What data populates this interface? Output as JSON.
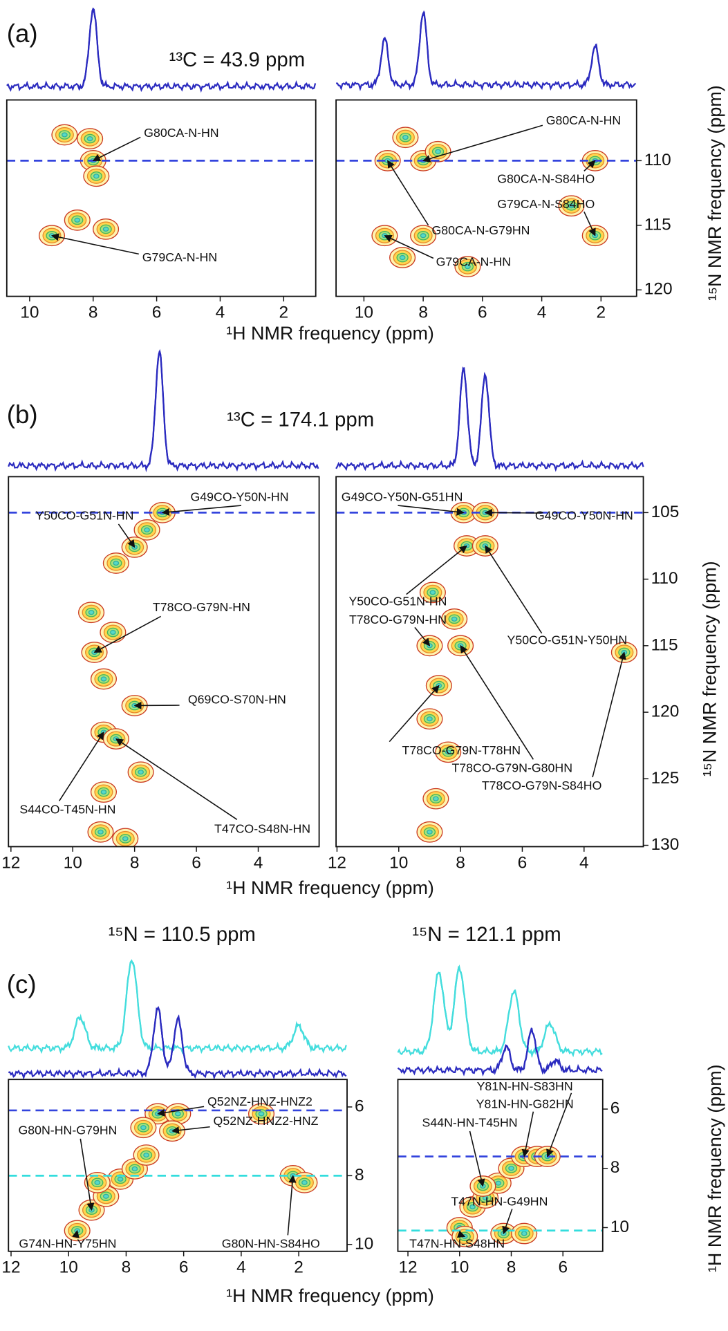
{
  "panels": [
    {
      "label": "(a)",
      "title": "¹³C = 43.9 ppm",
      "xlabel": "¹H NMR frequency (ppm)",
      "ylabel": "¹⁵N NMR frequency (ppm)",
      "plots": [
        {
          "xlim": [
            10.72,
            0.99
          ],
          "xticks": [
            10,
            8,
            6,
            4,
            2
          ],
          "ylim": [
            105.3,
            120.5
          ],
          "hlines": [
            {
              "value": 110,
              "color": "#3344dd"
            }
          ],
          "traces": [
            {
              "color": "#2a2abf",
              "peaks": [
                {
                  "x": 8.0,
                  "height": 1.0
                }
              ]
            }
          ],
          "peaks": [
            [
              8.0,
              110.0
            ],
            [
              8.1,
              108.3
            ],
            [
              7.9,
              111.2
            ],
            [
              9.3,
              115.8
            ],
            [
              8.5,
              114.6
            ],
            [
              8.9,
              108.0
            ],
            [
              7.6,
              115.3
            ]
          ],
          "annotations": [
            {
              "text": "G80CA-N-HN",
              "x": 8.0,
              "y": 110.0
            },
            {
              "text": "G79CA-N-HN",
              "x": 9.3,
              "y": 115.8
            }
          ]
        },
        {
          "xlim": [
            10.94,
            0.8
          ],
          "xticks": [
            10,
            8,
            6,
            4,
            2
          ],
          "ylim": [
            105.3,
            120.5
          ],
          "yticks": [
            110,
            115,
            120
          ],
          "hlines": [
            {
              "value": 110,
              "color": "#3344dd"
            }
          ],
          "traces": [
            {
              "color": "#2a2abf",
              "peaks": [
                {
                  "x": 9.3,
                  "height": 0.6
                },
                {
                  "x": 8.0,
                  "height": 0.95
                },
                {
                  "x": 2.2,
                  "height": 0.5
                }
              ]
            }
          ],
          "peaks": [
            [
              9.2,
              110.0
            ],
            [
              8.0,
              110.0
            ],
            [
              8.6,
              108.2
            ],
            [
              7.5,
              109.3
            ],
            [
              9.3,
              115.8
            ],
            [
              8.0,
              115.8
            ],
            [
              8.7,
              117.5
            ],
            [
              2.2,
              110.0
            ],
            [
              2.2,
              115.8
            ],
            [
              3.0,
              113.5
            ],
            [
              6.5,
              118.2
            ]
          ],
          "annotations": [
            {
              "text": "G80CA-N-HN",
              "x": 8.0,
              "y": 110.0
            },
            {
              "text": "G80CA-N-S84HO",
              "x": 2.2,
              "y": 110.0
            },
            {
              "text": "G79CA-N-S84HO",
              "x": 2.2,
              "y": 115.8
            },
            {
              "text": "G80CA-N-G79HN",
              "x": 9.2,
              "y": 110.0
            },
            {
              "text": "G79CA-N-HN",
              "x": 9.3,
              "y": 115.8
            }
          ]
        }
      ]
    },
    {
      "label": "(b)",
      "title": "¹³C = 174.1 ppm",
      "xlabel": "¹H NMR frequency (ppm)",
      "ylabel": "¹⁵N NMR frequency (ppm)",
      "plots": [
        {
          "xlim": [
            12.08,
            2.03
          ],
          "xticks": [
            12,
            10,
            8,
            6,
            4
          ],
          "ylim": [
            102.3,
            130.1
          ],
          "hlines": [
            {
              "value": 105,
              "color": "#3344dd"
            }
          ],
          "traces": [
            {
              "color": "#2a2abf",
              "peaks": [
                {
                  "x": 7.2,
                  "height": 1.0
                }
              ]
            }
          ],
          "peaks": [
            [
              7.1,
              105.0
            ],
            [
              7.6,
              106.3
            ],
            [
              8.0,
              107.6
            ],
            [
              8.6,
              108.8
            ],
            [
              9.3,
              115.5
            ],
            [
              8.7,
              114.0
            ],
            [
              9.0,
              117.5
            ],
            [
              8.0,
              119.5
            ],
            [
              9.0,
              121.5
            ],
            [
              8.6,
              122.0
            ],
            [
              7.8,
              124.5
            ],
            [
              9.0,
              126.0
            ],
            [
              9.1,
              129.0
            ],
            [
              8.3,
              129.5
            ],
            [
              9.4,
              112.5
            ]
          ],
          "annotations": [
            {
              "text": "G49CO-Y50N-HN",
              "x": 7.1,
              "y": 105.0
            },
            {
              "text": "Y50CO-G51N-HN",
              "x": 8.0,
              "y": 107.6
            },
            {
              "text": "T78CO-G79N-HN",
              "x": 9.3,
              "y": 115.5
            },
            {
              "text": "Q69CO-S70N-HN",
              "x": 8.0,
              "y": 119.5
            },
            {
              "text": "S44CO-T45N-HN",
              "x": 9.0,
              "y": 121.5
            },
            {
              "text": "T47CO-S48N-HN",
              "x": 8.6,
              "y": 122.0
            }
          ]
        },
        {
          "xlim": [
            12.03,
            2.08
          ],
          "xticks": [
            12,
            10,
            8,
            6,
            4
          ],
          "ylim": [
            102.3,
            130.1
          ],
          "yticks": [
            105,
            110,
            115,
            120,
            125,
            130
          ],
          "hlines": [
            {
              "value": 105,
              "color": "#3344dd"
            }
          ],
          "traces": [
            {
              "color": "#2a2abf",
              "peaks": [
                {
                  "x": 7.9,
                  "height": 0.85
                },
                {
                  "x": 7.2,
                  "height": 0.8
                }
              ]
            }
          ],
          "peaks": [
            [
              7.9,
              105.0
            ],
            [
              7.2,
              105.0
            ],
            [
              7.8,
              107.5
            ],
            [
              7.2,
              107.5
            ],
            [
              8.9,
              111.0
            ],
            [
              9.0,
              115.0
            ],
            [
              8.0,
              115.0
            ],
            [
              8.7,
              118.0
            ],
            [
              9.0,
              120.5
            ],
            [
              8.4,
              123.0
            ],
            [
              8.8,
              126.5
            ],
            [
              9.0,
              129.0
            ],
            [
              2.7,
              115.5
            ],
            [
              8.2,
              113.0
            ]
          ],
          "annotations": [
            {
              "text": "G49CO-Y50N-G51HN",
              "x": 7.9,
              "y": 105.0
            },
            {
              "text": "G49CO-Y50N-HN",
              "x": 7.2,
              "y": 105.0
            },
            {
              "text": "Y50CO-G51N-HN",
              "x": 7.8,
              "y": 107.5
            },
            {
              "text": "T78CO-G79N-HN",
              "x": 9.0,
              "y": 115.0
            },
            {
              "text": "Y50CO-G51N-Y50HN",
              "x": 7.2,
              "y": 107.5
            },
            {
              "text": "T78CO-G79N-T78HN",
              "x": 8.7,
              "y": 118.0
            },
            {
              "text": "T78CO-G79N-G80HN",
              "x": 8.0,
              "y": 115.0
            },
            {
              "text": "T78CO-G79N-S84HO",
              "x": 2.7,
              "y": 115.5
            }
          ]
        }
      ]
    },
    {
      "label": "(c)",
      "xlabel": "¹H NMR frequency (ppm)",
      "ylabel": "¹H NMR frequency (ppm)",
      "plots": [
        {
          "title": "¹⁵N = 110.5 ppm",
          "xlim": [
            12.09,
            0.32
          ],
          "xticks": [
            12,
            10,
            8,
            6,
            4,
            2
          ],
          "ylim": [
            5.2,
            10.2
          ],
          "yticks": [
            6,
            8,
            10
          ],
          "hlines": [
            {
              "value": 6.1,
              "color": "#3344dd"
            },
            {
              "value": 8.0,
              "color": "#33dddd"
            }
          ],
          "traces": [
            {
              "color": "#44dddd",
              "peaks": [
                {
                  "x": 7.8,
                  "height": 1.0
                },
                {
                  "x": 9.6,
                  "height": 0.35
                },
                {
                  "x": 2.0,
                  "height": 0.25
                }
              ]
            },
            {
              "color": "#2a2abf",
              "peaks": [
                {
                  "x": 6.9,
                  "height": 0.9
                },
                {
                  "x": 6.2,
                  "height": 0.75
                }
              ]
            }
          ],
          "peaks": [
            [
              9.7,
              9.6
            ],
            [
              9.2,
              9.0
            ],
            [
              8.7,
              8.6
            ],
            [
              8.2,
              8.1
            ],
            [
              7.7,
              7.8
            ],
            [
              7.3,
              7.4
            ],
            [
              6.9,
              6.2
            ],
            [
              6.2,
              6.2
            ],
            [
              6.4,
              6.7
            ],
            [
              7.4,
              6.6
            ],
            [
              3.3,
              6.2
            ],
            [
              2.2,
              8.0
            ],
            [
              1.8,
              8.2
            ],
            [
              9.0,
              8.2
            ]
          ],
          "annotations": [
            {
              "text": "G80N-HN-G79HN",
              "x": 9.2,
              "y": 9.0
            },
            {
              "text": "Q52NZ-HNZ-HNZ2",
              "x": 6.9,
              "y": 6.2
            },
            {
              "text": "Q52NZ-HNZ2-HNZ",
              "x": 6.4,
              "y": 6.7
            },
            {
              "text": "G74N-HN-Y75HN",
              "x": 9.7,
              "y": 9.6
            },
            {
              "text": "G80N-HN-S84HO",
              "x": 2.2,
              "y": 8.0
            }
          ]
        },
        {
          "title": "¹⁵N = 121.1 ppm",
          "xlim": [
            12.39,
            4.46
          ],
          "xticks": [
            12,
            10,
            8,
            6
          ],
          "ylim": [
            5.0,
            10.8
          ],
          "yticks": [
            6,
            8,
            10
          ],
          "hlines": [
            {
              "value": 7.6,
              "color": "#3344dd"
            },
            {
              "value": 10.1,
              "color": "#33dddd"
            }
          ],
          "traces": [
            {
              "color": "#44dddd",
              "peaks": [
                {
                  "x": 10.8,
                  "height": 0.85
                },
                {
                  "x": 10.0,
                  "height": 0.9
                },
                {
                  "x": 7.9,
                  "height": 0.65
                },
                {
                  "x": 6.5,
                  "height": 0.3
                }
              ]
            },
            {
              "color": "#2a2abf",
              "peaks": [
                {
                  "x": 8.2,
                  "height": 0.35
                },
                {
                  "x": 7.2,
                  "height": 0.6
                },
                {
                  "x": 6.3,
                  "height": 0.15
                }
              ]
            }
          ],
          "peaks": [
            [
              10.0,
              10.0
            ],
            [
              9.5,
              9.3
            ],
            [
              9.0,
              9.0
            ],
            [
              8.5,
              8.5
            ],
            [
              8.0,
              8.0
            ],
            [
              7.5,
              7.6
            ],
            [
              7.0,
              7.6
            ],
            [
              6.6,
              7.6
            ],
            [
              8.3,
              10.2
            ],
            [
              9.8,
              10.3
            ],
            [
              7.5,
              10.2
            ],
            [
              9.1,
              8.6
            ]
          ],
          "annotations": [
            {
              "text": "Y81N-HN-S83HN",
              "x": 6.6,
              "y": 7.6
            },
            {
              "text": "Y81N-HN-G82HN",
              "x": 7.5,
              "y": 7.6
            },
            {
              "text": "S44N-HN-T45HN",
              "x": 9.1,
              "y": 8.6
            },
            {
              "text": "T47N-HN-G49HN",
              "x": 8.3,
              "y": 10.2
            },
            {
              "text": "T47N-HN-S48HN",
              "x": 9.8,
              "y": 10.3
            }
          ]
        }
      ]
    }
  ]
}
